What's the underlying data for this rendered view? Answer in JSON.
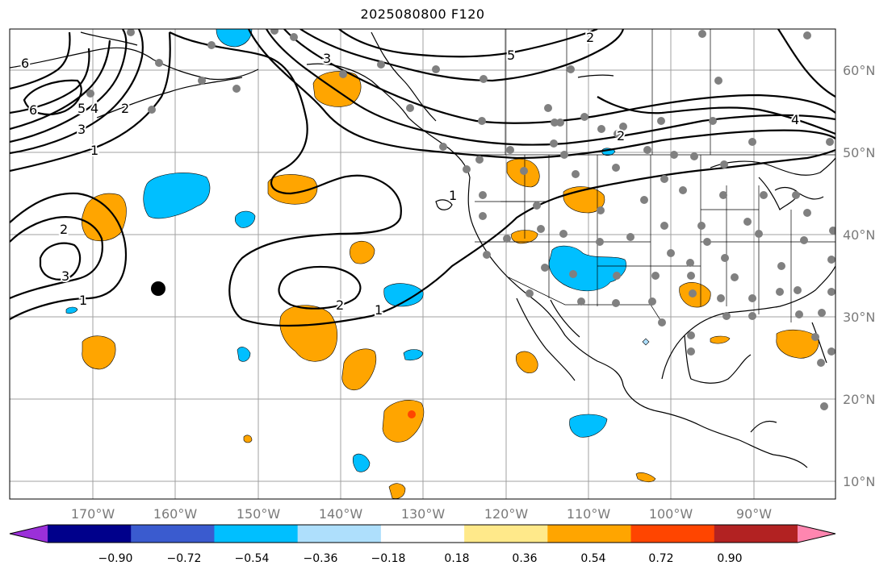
{
  "title": "2025080800 F120",
  "longitude_labels": [
    "170°W",
    "160°W",
    "150°W",
    "140°W",
    "130°W",
    "120°W",
    "110°W",
    "100°W",
    "90°W"
  ],
  "latitude_labels": [
    "60°N",
    "50°N",
    "40°N",
    "30°N",
    "20°N",
    "10°N"
  ],
  "colorbar": {
    "ticks": [
      "−0.90",
      "−0.72",
      "−0.54",
      "−0.36",
      "−0.18",
      "0.18",
      "0.36",
      "0.54",
      "0.72",
      "0.90"
    ],
    "colors": [
      "#9b30d9",
      "#00008b",
      "#3a5bcf",
      "#00bfff",
      "#aedffc",
      "#ffffff",
      "#ffe98a",
      "#ffa500",
      "#ff4500",
      "#b22222",
      "#ff86b0"
    ]
  },
  "contour_labels": [
    "6",
    "6",
    "5",
    "4",
    "3",
    "2",
    "1",
    "2",
    "3",
    "1",
    "2",
    "1",
    "5",
    "3",
    "2",
    "4",
    "1",
    "2"
  ],
  "colors": {
    "positive_shading": "#ffa500",
    "strong_positive": "#ff4500",
    "negative_shading": "#00bfff",
    "station_dots": "#808080",
    "marker": "#000000",
    "grid": "#a0a0a0"
  }
}
